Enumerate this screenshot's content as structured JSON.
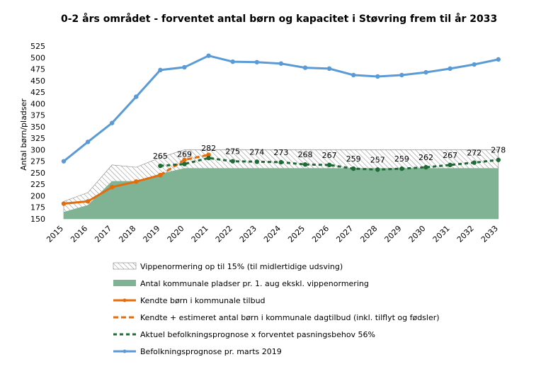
{
  "chart_data": {
    "type": "line",
    "title": "0-2 års området - forventet antal børn og kapacitet i Støvring frem til år 2033",
    "xlabel": "",
    "ylabel": "Antal børn/pladser",
    "ylim": [
      150,
      525
    ],
    "yticks": [
      150,
      175,
      200,
      225,
      250,
      275,
      300,
      325,
      350,
      375,
      400,
      425,
      450,
      475,
      500,
      525
    ],
    "categories": [
      "2015",
      "2016",
      "2017",
      "2018",
      "2019",
      "2020",
      "2021",
      "2022",
      "2023",
      "2024",
      "2025",
      "2026",
      "2027",
      "2028",
      "2029",
      "2030",
      "2031",
      "2032",
      "2033"
    ],
    "grid": false,
    "legend_position": "bottom",
    "series": [
      {
        "name": "Vippenormering op til 15% (til midlertidige udsving)",
        "kind": "hatched-area",
        "color": "#808080",
        "values": [
          188,
          207,
          267,
          262,
          283,
          300,
          300,
          300,
          300,
          300,
          300,
          300,
          300,
          300,
          300,
          300,
          300,
          300,
          300
        ]
      },
      {
        "name": "Antal kommunale pladser pr. 1. aug ekskl. vippenormering",
        "kind": "area",
        "color": "#7fb394",
        "values": [
          165,
          180,
          232,
          232,
          248,
          260,
          260,
          260,
          260,
          260,
          260,
          260,
          260,
          260,
          260,
          260,
          260,
          260,
          260
        ]
      },
      {
        "name": "Kendte børn i kommunale tilbud",
        "kind": "line",
        "color": "#e46c0a",
        "values": [
          183,
          188,
          219,
          231,
          245,
          null,
          null,
          null,
          null,
          null,
          null,
          null,
          null,
          null,
          null,
          null,
          null,
          null,
          null
        ]
      },
      {
        "name": "Kendte + estimeret antal børn i kommunale dagtilbud (inkl. tilflyt og fødsler)",
        "kind": "dashed-line",
        "color": "#e46c0a",
        "values": [
          null,
          null,
          null,
          null,
          245,
          278,
          289,
          null,
          null,
          null,
          null,
          null,
          null,
          null,
          null,
          null,
          null,
          null,
          null
        ]
      },
      {
        "name": "Aktuel befolkningsprognose x forventet pasningsbehov 56%",
        "kind": "dotted-line",
        "color": "#1f6b35",
        "values": [
          null,
          null,
          null,
          null,
          265,
          269,
          282,
          275,
          274,
          273,
          268,
          267,
          259,
          257,
          259,
          262,
          267,
          272,
          278
        ],
        "labels": [
          null,
          null,
          null,
          null,
          "265",
          "269",
          "282",
          "275",
          "274",
          "273",
          "268",
          "267",
          "259",
          "257",
          "259",
          "262",
          "267",
          "272",
          "278"
        ]
      },
      {
        "name": "Befolkningsprognose pr. marts 2019",
        "kind": "line",
        "color": "#5b9bd5",
        "values": [
          275,
          317,
          358,
          415,
          473,
          479,
          504,
          491,
          490,
          487,
          478,
          476,
          462,
          459,
          462,
          468,
          476,
          485,
          496
        ]
      }
    ]
  }
}
